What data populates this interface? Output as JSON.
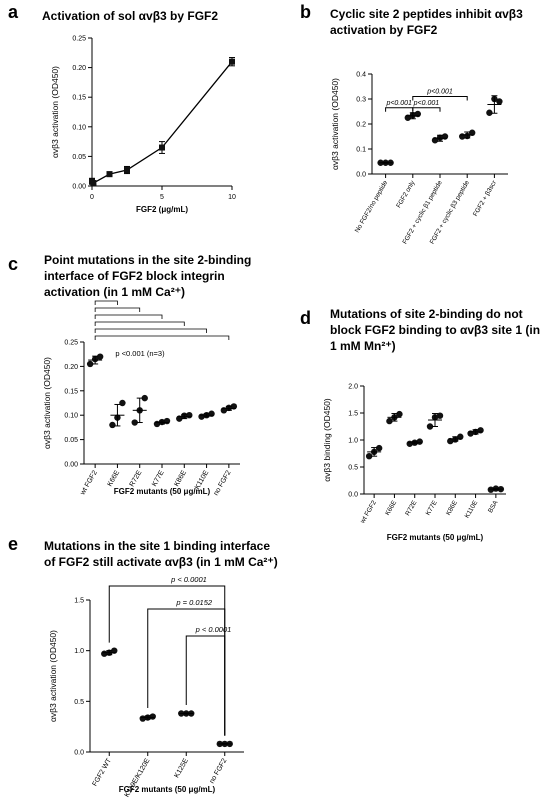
{
  "panels": {
    "a": {
      "letter": "a",
      "title": "Activation of sol αvβ3 by FGF2"
    },
    "b": {
      "letter": "b",
      "title_line1": "Cyclic site 2 peptides inhibit αvβ3",
      "title_line2": "activation by FGF2"
    },
    "c": {
      "letter": "c",
      "title_line1": "Point mutations in the site 2-binding",
      "title_line2": "interface of FGF2 block integrin",
      "title_line3": "activation (in 1 mM Ca²⁺)"
    },
    "d": {
      "letter": "d",
      "title_line1": "Mutations of site 2-binding do not",
      "title_line2": "block FGF2 binding to αvβ3 site 1 (in",
      "title_line3": "1 mM Mn²⁺)"
    },
    "e": {
      "letter": "e",
      "title_line1": "Mutations in the site 1 binding interface",
      "title_line2": "of FGF2 still activate αvβ3 (in 1 mM Ca²⁺)"
    }
  },
  "chart_data": [
    {
      "id": "a",
      "type": "line",
      "xlabel": "FGF2 (μg/mL)",
      "ylabel": "αvβ3 activation (OD450)",
      "xlim": [
        0,
        10
      ],
      "ylim": [
        0,
        0.25
      ],
      "xticks": [
        0,
        5,
        10
      ],
      "yticks": [
        0.0,
        0.05,
        0.1,
        0.15,
        0.2,
        0.25
      ],
      "series": [
        {
          "x": [
            0,
            0.1,
            1.25,
            2.5,
            5,
            10
          ],
          "y": [
            0.008,
            0.005,
            0.02,
            0.027,
            0.065,
            0.21
          ],
          "err": [
            0.005,
            0.003,
            0.004,
            0.006,
            0.01,
            0.007
          ]
        }
      ]
    },
    {
      "id": "b",
      "type": "scatter",
      "ylabel": "αvβ3 activation (OD450)",
      "ylim": [
        0,
        0.4
      ],
      "yticks": [
        0.0,
        0.1,
        0.2,
        0.3,
        0.4
      ],
      "categories": [
        "No FGF2/no peptide",
        "FGF2 only",
        "FGF2 + cyclic β1 peptide",
        "FGF2 + cyclic β3 peptide",
        "FGF2 + β3scr"
      ],
      "points": [
        [
          0.045,
          0.045,
          0.045
        ],
        [
          0.225,
          0.24,
          0.235
        ],
        [
          0.135,
          0.15,
          0.145
        ],
        [
          0.15,
          0.165,
          0.152
        ],
        [
          0.245,
          0.29,
          0.3
        ]
      ],
      "mean": [
        0.045,
        0.233,
        0.143,
        0.156,
        0.278
      ],
      "sd": [
        0.002,
        0.012,
        0.012,
        0.012,
        0.035
      ],
      "annotations": [
        {
          "from": 0,
          "to": 1,
          "text": "p<0.001"
        },
        {
          "from": 1,
          "to": 2,
          "text": "p<0.001"
        },
        {
          "from": 1,
          "to": 3,
          "text": "p<0.001"
        }
      ]
    },
    {
      "id": "c",
      "type": "scatter",
      "xlabel": "FGF2 mutants (50 μg/mL)",
      "ylabel": "αvβ3 activation (OD450)",
      "ylim": [
        0,
        0.25
      ],
      "yticks": [
        0.0,
        0.05,
        0.1,
        0.15,
        0.2,
        0.25
      ],
      "categories": [
        "wt FGF2",
        "K66E",
        "R72E",
        "K77E",
        "K86E",
        "K110E",
        "no FGF2"
      ],
      "points": [
        [
          0.205,
          0.22,
          0.215
        ],
        [
          0.08,
          0.125,
          0.095
        ],
        [
          0.085,
          0.135,
          0.11
        ],
        [
          0.082,
          0.088,
          0.086
        ],
        [
          0.093,
          0.1,
          0.099
        ],
        [
          0.097,
          0.103,
          0.1
        ],
        [
          0.11,
          0.118,
          0.115
        ]
      ],
      "mean": [
        0.213,
        0.1,
        0.11,
        0.085,
        0.097,
        0.1,
        0.114
      ],
      "sd": [
        0.008,
        0.022,
        0.025,
        0.003,
        0.004,
        0.003,
        0.004
      ],
      "annotation": "p <0.001 (n=3)"
    },
    {
      "id": "d",
      "type": "scatter",
      "xlabel": "FGF2 mutants (50 μg/mL)",
      "ylabel": "αvβ3 binding (OD450)",
      "ylim": [
        0,
        2.0
      ],
      "yticks": [
        0.0,
        0.5,
        1.0,
        1.5,
        2.0
      ],
      "categories": [
        "wt FGF2",
        "K66E",
        "R72E",
        "K77E",
        "K86E",
        "K110E",
        "BSA"
      ],
      "points": [
        [
          0.7,
          0.85,
          0.78
        ],
        [
          1.35,
          1.48,
          1.42
        ],
        [
          0.93,
          0.97,
          0.95
        ],
        [
          1.25,
          1.45,
          1.42
        ],
        [
          0.98,
          1.06,
          1.01
        ],
        [
          1.12,
          1.18,
          1.15
        ],
        [
          0.08,
          0.09,
          0.1
        ]
      ],
      "mean": [
        0.78,
        1.42,
        0.95,
        1.37,
        1.02,
        1.15,
        0.09
      ],
      "sd": [
        0.08,
        0.07,
        0.02,
        0.12,
        0.04,
        0.04,
        0.01
      ]
    },
    {
      "id": "e",
      "type": "scatter",
      "xlabel": "FGF2 mutants (50 μg/mL)",
      "ylabel": "αvβ3 activation (OD450)",
      "ylim": [
        0,
        1.5
      ],
      "yticks": [
        0.0,
        0.5,
        1.0,
        1.5
      ],
      "categories": [
        "FGF2 WT",
        "K119E/K120E",
        "K125E",
        "no FGF2"
      ],
      "points": [
        [
          0.97,
          1.0,
          0.98
        ],
        [
          0.33,
          0.35,
          0.34
        ],
        [
          0.38,
          0.38,
          0.38
        ],
        [
          0.08,
          0.08,
          0.08
        ]
      ],
      "mean": [
        0.98,
        0.34,
        0.38,
        0.08
      ],
      "sd": [
        0.02,
        0.015,
        0.005,
        0.003
      ],
      "annotations": [
        {
          "from": 0,
          "to": 3,
          "text": "p < 0.0001"
        },
        {
          "from": 1,
          "to": 3,
          "text": "p = 0.0152"
        },
        {
          "from": 2,
          "to": 3,
          "text": "p < 0.0001"
        }
      ]
    }
  ]
}
